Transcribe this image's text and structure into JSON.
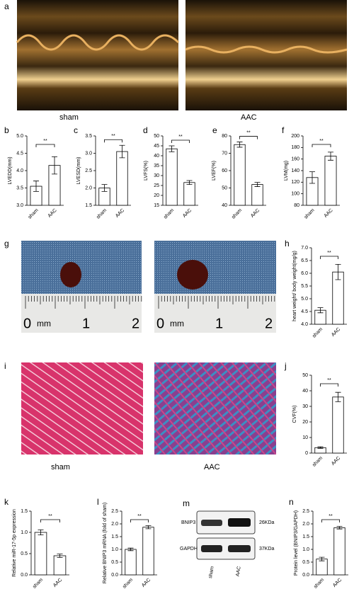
{
  "images": {
    "a": {
      "panel": "a",
      "labels": [
        "sham",
        "AAC"
      ]
    },
    "g": {
      "panel": "g",
      "ruler": [
        "0",
        "mm",
        "1",
        "2"
      ]
    },
    "i": {
      "panel": "i",
      "labels": [
        "sham",
        "AAC"
      ]
    },
    "m": {
      "panel": "m",
      "bands": [
        "BNIP3",
        "GAPDH"
      ],
      "sizes": [
        "26KDa",
        "37KDa"
      ],
      "lanes": [
        "sham",
        "AAC"
      ]
    }
  },
  "chart_data": [
    {
      "type": "bar",
      "panel": "b",
      "ylabel": "LVEDD(mm)",
      "categories": [
        "sham",
        "AAC"
      ],
      "values": [
        3.55,
        4.15
      ],
      "errors": [
        0.15,
        0.25
      ],
      "color": "#ffffff",
      "significance": "**",
      "ylim": [
        3.0,
        5.0
      ],
      "yticks": [
        {
          "value": 3,
          "label": "3.0"
        },
        3.5,
        {
          "value": 4,
          "label": "4.0"
        },
        4.5,
        {
          "value": 5,
          "label": "5.0"
        }
      ]
    },
    {
      "type": "bar",
      "panel": "c",
      "ylabel": "LVESD(mm)",
      "categories": [
        "sham",
        "AAC"
      ],
      "values": [
        2.0,
        3.05
      ],
      "errors": [
        0.1,
        0.18
      ],
      "color": "#ffffff",
      "significance": "**",
      "ylim": [
        1.5,
        3.5
      ],
      "yticks": [
        1.5,
        {
          "value": 2,
          "label": "2.0"
        },
        2.5,
        {
          "value": 3,
          "label": "3.0"
        },
        3.5
      ]
    },
    {
      "type": "bar",
      "panel": "d",
      "ylabel": "LVFS(%)",
      "categories": [
        "sham",
        "AAC"
      ],
      "values": [
        43.5,
        26.5
      ],
      "errors": [
        1.5,
        1.0
      ],
      "color": "#ffffff",
      "significance": "**",
      "ylim": [
        15,
        50
      ],
      "yticks": [
        15,
        20,
        25,
        30,
        35,
        40,
        45,
        50
      ]
    },
    {
      "type": "bar",
      "panel": "e",
      "ylabel": "LVEF(%)",
      "categories": [
        "sham",
        "AAC"
      ],
      "values": [
        75,
        52
      ],
      "errors": [
        1.5,
        1.2
      ],
      "color": "#ffffff",
      "significance": "**",
      "ylim": [
        40,
        80
      ],
      "yticks": [
        40,
        50,
        60,
        70,
        80
      ]
    },
    {
      "type": "bar",
      "panel": "f",
      "ylabel": "LVM(mg)",
      "categories": [
        "sham",
        "AAC"
      ],
      "values": [
        128,
        165
      ],
      "errors": [
        10,
        7
      ],
      "color": "#ffffff",
      "significance": "**",
      "ylim": [
        80,
        200
      ],
      "yticks": [
        80,
        100,
        120,
        140,
        160,
        180,
        200
      ]
    },
    {
      "type": "bar",
      "panel": "h",
      "ylabel": "heart weight/ body weight(mg/g)",
      "categories": [
        "sham",
        "AAC"
      ],
      "values": [
        4.55,
        6.05
      ],
      "errors": [
        0.1,
        0.3
      ],
      "color": "#ffffff",
      "significance": "**",
      "ylim": [
        4.0,
        7.0
      ],
      "yticks": [
        {
          "value": 4,
          "label": "4.0"
        },
        4.5,
        {
          "value": 5,
          "label": "5.0"
        },
        5.5,
        {
          "value": 6,
          "label": "6.0"
        },
        6.5,
        {
          "value": 7,
          "label": "7.0"
        }
      ]
    },
    {
      "type": "bar",
      "panel": "j",
      "ylabel": "CVF(%)",
      "categories": [
        "sham",
        "AAC"
      ],
      "values": [
        3.5,
        36
      ],
      "errors": [
        0.5,
        3
      ],
      "color": "#ffffff",
      "significance": "**",
      "ylim": [
        0,
        50
      ],
      "yticks": [
        0,
        10,
        20,
        30,
        40,
        50
      ]
    },
    {
      "type": "bar",
      "panel": "k",
      "ylabel": "Relative miR-17-5p expression",
      "categories": [
        "sham",
        "AAC"
      ],
      "values": [
        1.0,
        0.45
      ],
      "errors": [
        0.06,
        0.04
      ],
      "color": "#ffffff",
      "significance": "**",
      "ylim": [
        0,
        1.5
      ],
      "yticks": [
        {
          "value": 0,
          "label": "0.0"
        },
        0.5,
        {
          "value": 1,
          "label": "1.0"
        },
        1.5
      ]
    },
    {
      "type": "bar",
      "panel": "l",
      "ylabel": "Relative BNIP3 mRNA (fold of sham)",
      "categories": [
        "sham",
        "AAC"
      ],
      "values": [
        1.0,
        1.87
      ],
      "errors": [
        0.05,
        0.06
      ],
      "color": "#ffffff",
      "significance": "**",
      "ylim": [
        0,
        2.5
      ],
      "yticks": [
        {
          "value": 0,
          "label": "0.0"
        },
        0.5,
        {
          "value": 1,
          "label": "1.0"
        },
        1.5,
        {
          "value": 2,
          "label": "2.0"
        },
        2.5
      ]
    },
    {
      "type": "bar",
      "panel": "n",
      "ylabel": "Protein level (BNIP3/GAPDH)",
      "categories": [
        "sham",
        "AAC"
      ],
      "values": [
        0.62,
        1.85
      ],
      "errors": [
        0.07,
        0.05
      ],
      "color": "#ffffff",
      "significance": "**",
      "ylim": [
        0,
        2.5
      ],
      "yticks": [
        {
          "value": 0,
          "label": "0.0"
        },
        0.5,
        {
          "value": 1,
          "label": "1.0"
        },
        1.5,
        {
          "value": 2,
          "label": "2.0"
        },
        2.5
      ]
    }
  ]
}
